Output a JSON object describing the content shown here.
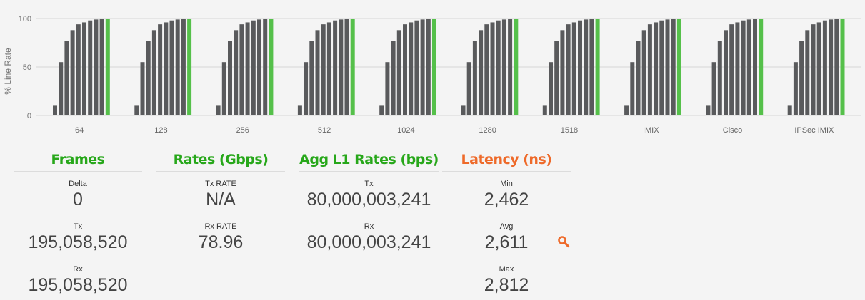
{
  "chart_data": {
    "type": "bar",
    "ylabel": "% Line Rate",
    "ylim": [
      0,
      100
    ],
    "yticks": [
      0,
      50,
      100
    ],
    "grid": true,
    "categories": [
      "64",
      "128",
      "256",
      "512",
      "1024",
      "1280",
      "1518",
      "IMIX",
      "Cisco",
      "IPSec IMIX"
    ],
    "bar_values": [
      10,
      55,
      77,
      88,
      94,
      96,
      98,
      99,
      100
    ],
    "final_bar_value": 100,
    "colors": {
      "bar": "#595a5c",
      "final_bar": "#55c04a"
    }
  },
  "panels": [
    {
      "title": "Frames",
      "title_color": "#27a71a",
      "stats": [
        {
          "label": "Delta",
          "value": "0"
        },
        {
          "label": "Tx",
          "value": "195,058,520"
        },
        {
          "label": "Rx",
          "value": "195,058,520"
        }
      ]
    },
    {
      "title": "Rates (Gbps)",
      "title_color": "#27a71a",
      "stats": [
        {
          "label": "Tx RATE",
          "value": "N/A"
        },
        {
          "label": "Rx RATE",
          "value": "78.96"
        }
      ]
    },
    {
      "title": "Agg L1 Rates (bps)",
      "title_color": "#27a71a",
      "stats": [
        {
          "label": "Tx",
          "value": "80,000,003,241"
        },
        {
          "label": "Rx",
          "value": "80,000,003,241"
        }
      ]
    },
    {
      "title": "Latency (ns)",
      "title_color": "#ee6a2a",
      "stats": [
        {
          "label": "Min",
          "value": "2,462"
        },
        {
          "label": "Avg",
          "value": "2,611"
        },
        {
          "label": "Max",
          "value": "2,812"
        }
      ]
    }
  ],
  "icons": {
    "latency_detail": "magnifier-icon",
    "latency_detail_color": "#ee6a2a"
  }
}
